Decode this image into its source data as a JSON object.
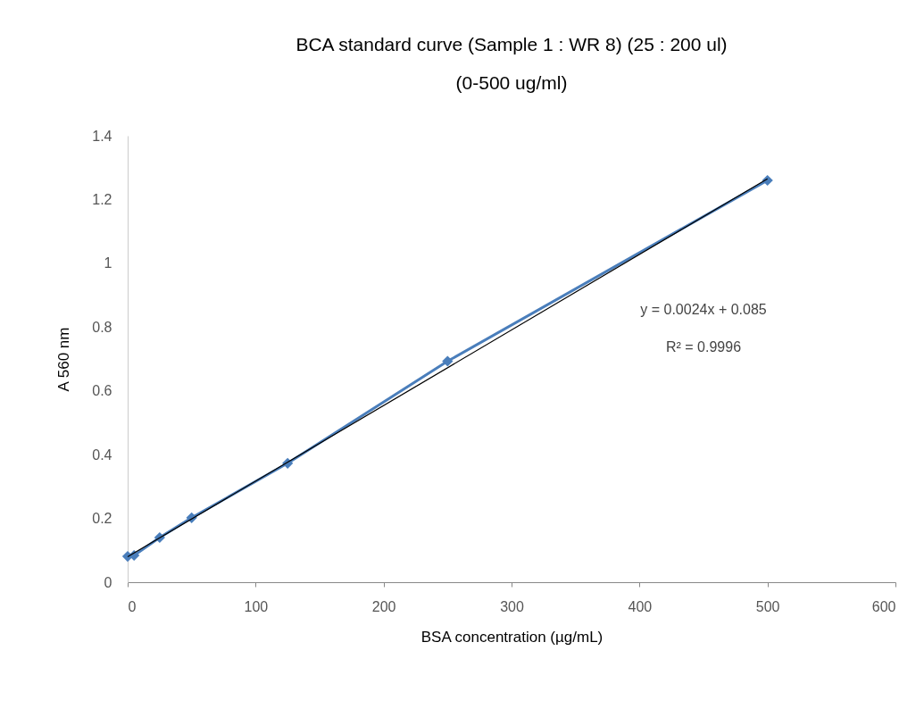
{
  "chart_data": {
    "type": "scatter",
    "title": "BCA standard curve (Sample 1 : WR 8) (25 : 200 ul)",
    "subtitle": "(0-500 ug/ml)",
    "xlabel": "BSA concentration  (µg/mL)",
    "ylabel": "A 560 nm",
    "series": [
      {
        "type": "line",
        "color": "#4a7ebb",
        "x": [
          0,
          5,
          25,
          50,
          125,
          250,
          500
        ],
        "values": [
          0.081,
          0.084,
          0.14,
          0.202,
          0.373,
          0.693,
          1.26
        ],
        "marker": "diamond"
      },
      {
        "type": "line",
        "color": "#000000",
        "x": [
          0,
          500
        ],
        "values": [
          0.08,
          1.265
        ],
        "marker": "none"
      }
    ],
    "xlim": [
      0,
      600
    ],
    "xticks": [
      0,
      100,
      200,
      300,
      400,
      500,
      600
    ],
    "ylim": [
      0,
      1.4
    ],
    "yticks": [
      0,
      0.2,
      0.4,
      0.6,
      0.8,
      1,
      1.2,
      1.4
    ],
    "grid": false,
    "annotations": [
      "y = 0.0024x + 0.085",
      "R² = 0.9996"
    ]
  }
}
